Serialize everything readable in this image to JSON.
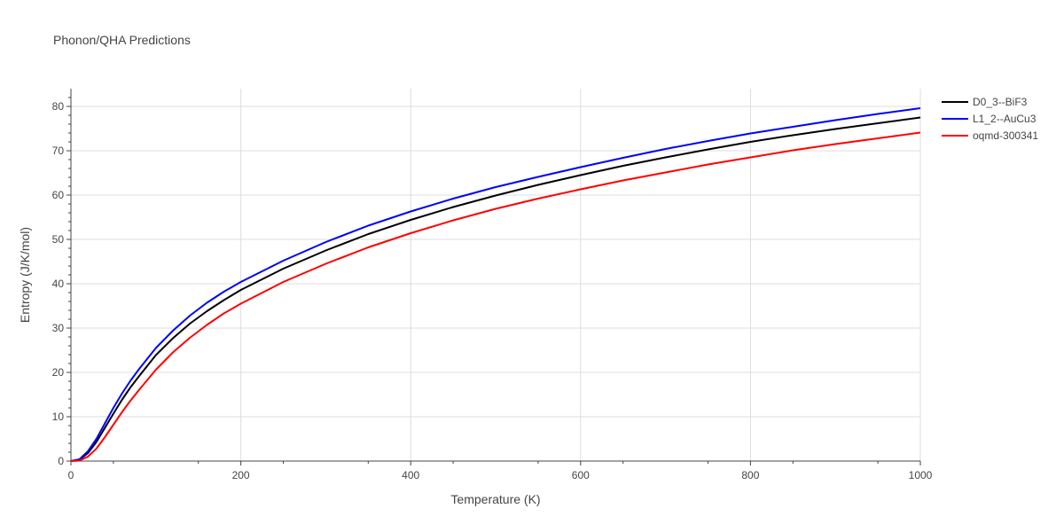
{
  "chart_data": {
    "type": "line",
    "title": "Phonon/QHA Predictions",
    "xlabel": "Temperature (K)",
    "ylabel": "Entropy (J/K/mol)",
    "xlim": [
      0,
      1000
    ],
    "ylim": [
      0,
      84
    ],
    "x_ticks": [
      0,
      200,
      400,
      600,
      800,
      1000
    ],
    "y_ticks": [
      0,
      10,
      20,
      30,
      40,
      50,
      60,
      70,
      80
    ],
    "grid": true,
    "legend_position": "top-right",
    "series": [
      {
        "name": "D0_3--BiF3",
        "color": "#000000",
        "x": [
          0,
          10,
          20,
          30,
          40,
          50,
          60,
          70,
          80,
          100,
          120,
          140,
          160,
          180,
          200,
          250,
          300,
          350,
          400,
          450,
          500,
          550,
          600,
          650,
          700,
          750,
          800,
          850,
          900,
          950,
          1000
        ],
        "y": [
          0,
          0.3,
          1.8,
          4.3,
          7.5,
          10.7,
          13.8,
          16.6,
          19.1,
          23.9,
          27.7,
          31.0,
          33.8,
          36.3,
          38.6,
          43.4,
          47.5,
          51.2,
          54.4,
          57.3,
          59.9,
          62.3,
          64.5,
          66.6,
          68.5,
          70.3,
          72.0,
          73.5,
          74.9,
          76.2,
          77.5
        ]
      },
      {
        "name": "L1_2--AuCu3",
        "color": "#0000ff",
        "x": [
          0,
          10,
          20,
          30,
          40,
          50,
          60,
          70,
          80,
          100,
          120,
          140,
          160,
          180,
          200,
          250,
          300,
          350,
          400,
          450,
          500,
          550,
          600,
          650,
          700,
          750,
          800,
          850,
          900,
          950,
          1000
        ],
        "y": [
          0,
          0.4,
          2.2,
          5.0,
          8.5,
          12.0,
          15.2,
          18.1,
          20.7,
          25.5,
          29.4,
          32.8,
          35.7,
          38.2,
          40.4,
          45.2,
          49.4,
          53.1,
          56.3,
          59.2,
          61.8,
          64.1,
          66.3,
          68.4,
          70.4,
          72.2,
          73.9,
          75.4,
          76.9,
          78.3,
          79.6
        ]
      },
      {
        "name": "oqmd-300341",
        "color": "#ff0000",
        "x": [
          0,
          10,
          20,
          30,
          40,
          50,
          60,
          70,
          80,
          100,
          120,
          140,
          160,
          180,
          200,
          250,
          300,
          350,
          400,
          450,
          500,
          550,
          600,
          650,
          700,
          750,
          800,
          850,
          900,
          950,
          1000
        ],
        "y": [
          0,
          0.1,
          1.0,
          2.8,
          5.4,
          8.2,
          11.0,
          13.6,
          16.0,
          20.6,
          24.5,
          27.8,
          30.7,
          33.3,
          35.5,
          40.4,
          44.5,
          48.2,
          51.4,
          54.3,
          56.9,
          59.2,
          61.3,
          63.3,
          65.1,
          66.9,
          68.5,
          70.1,
          71.5,
          72.8,
          74.1
        ]
      }
    ]
  }
}
